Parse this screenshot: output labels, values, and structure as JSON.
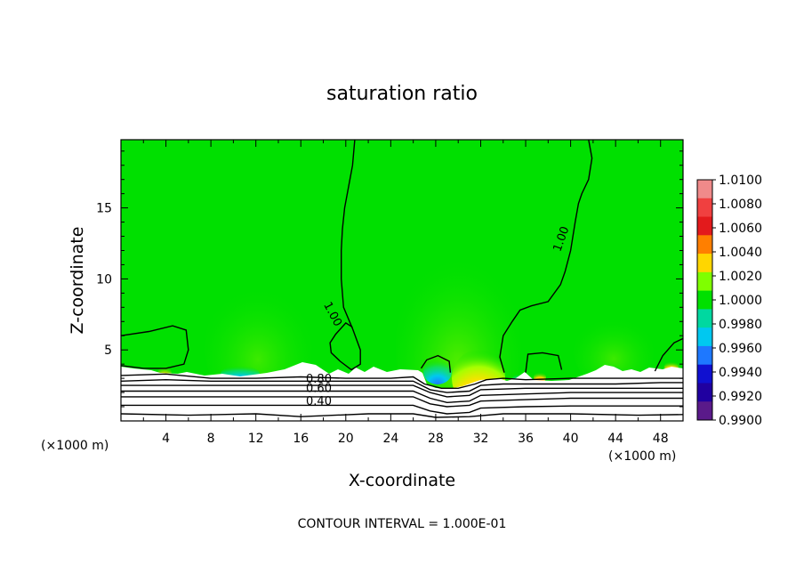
{
  "chart_data": {
    "type": "heatmap",
    "title": "saturation ratio",
    "xlabel": "X-coordinate",
    "ylabel": "Z-coordinate",
    "x_unit_left": "(×1000 m)",
    "x_unit_right": "(×1000 m)",
    "xlim": [
      0,
      50
    ],
    "ylim": [
      0,
      19.8
    ],
    "x_ticks": [
      4,
      8,
      12,
      16,
      20,
      24,
      28,
      32,
      36,
      40,
      44,
      48
    ],
    "y_ticks": [
      5,
      10,
      15
    ],
    "footer": "CONTOUR INTERVAL = 1.000E-01",
    "colorbar": {
      "min": 0.99,
      "max": 1.01,
      "levels": [
        "1.0100",
        "1.0080",
        "1.0060",
        "1.0040",
        "1.0020",
        "1.0000",
        "0.9980",
        "0.9960",
        "0.9940",
        "0.9920",
        "0.9900"
      ],
      "colors": [
        "#f08a8a",
        "#f04040",
        "#e31a1c",
        "#ff7f00",
        "#ffd600",
        "#7fff00",
        "#00e000",
        "#00d8a0",
        "#00c8f0",
        "#1e78ff",
        "#1010d0",
        "#2000a0",
        "#5a1a8a"
      ]
    },
    "background_value_color": "#00e000",
    "contour_labels": [
      {
        "text": "1.00",
        "x": 18.8,
        "z": 7.5,
        "angle": 62
      },
      {
        "text": "1.00",
        "x": 39.2,
        "z": 12.8,
        "angle": -70
      },
      {
        "text": "0.80",
        "x": 17.6,
        "z": 2.9,
        "angle": 0
      },
      {
        "text": "0.60",
        "x": 17.6,
        "z": 2.25,
        "angle": 0
      },
      {
        "text": "0.40",
        "x": 17.6,
        "z": 1.35,
        "angle": 0
      }
    ],
    "contour_lines": [
      {
        "level": 1.0,
        "points": [
          [
            20.8,
            19.8
          ],
          [
            20.6,
            18
          ],
          [
            19.9,
            15
          ],
          [
            19.7,
            13.5
          ],
          [
            19.6,
            12
          ],
          [
            19.6,
            10
          ],
          [
            19.8,
            8
          ],
          [
            20.6,
            6.5
          ],
          [
            21.3,
            5
          ],
          [
            21.3,
            4
          ],
          [
            20.5,
            3.6
          ],
          [
            19.5,
            4.2
          ],
          [
            18.7,
            4.8
          ],
          [
            18.6,
            5.5
          ],
          [
            19.1,
            6.1
          ],
          [
            20.0,
            6.9
          ],
          [
            20.6,
            6.6
          ]
        ]
      },
      {
        "level": 1.0,
        "points": [
          [
            41.6,
            19.8
          ],
          [
            41.9,
            18.5
          ],
          [
            41.6,
            17
          ],
          [
            41.0,
            16
          ],
          [
            40.7,
            15.3
          ],
          [
            40.4,
            14
          ],
          [
            40.0,
            12
          ],
          [
            39.5,
            10.5
          ],
          [
            39.1,
            9.6
          ],
          [
            38.0,
            8.4
          ],
          [
            36.5,
            8.1
          ],
          [
            35.5,
            7.8
          ],
          [
            34.8,
            7.0
          ],
          [
            34.0,
            6.0
          ],
          [
            33.7,
            4.5
          ],
          [
            34.1,
            3.4
          ]
        ]
      },
      {
        "level": 1.0,
        "points": [
          [
            0,
            6.0
          ],
          [
            2.5,
            6.3
          ],
          [
            4.6,
            6.7
          ],
          [
            5.8,
            6.4
          ],
          [
            6.0,
            5.0
          ],
          [
            5.6,
            4.0
          ],
          [
            4.0,
            3.7
          ],
          [
            2.0,
            3.7
          ],
          [
            0,
            3.9
          ]
        ]
      },
      {
        "level": 1.0,
        "points": [
          [
            26.7,
            3.7
          ],
          [
            27.2,
            4.3
          ],
          [
            28.2,
            4.6
          ],
          [
            29.2,
            4.2
          ],
          [
            29.3,
            3.4
          ]
        ]
      },
      {
        "level": 1.0,
        "points": [
          [
            36.0,
            3.4
          ],
          [
            36.2,
            4.7
          ],
          [
            37.5,
            4.8
          ],
          [
            38.9,
            4.6
          ],
          [
            39.2,
            3.6
          ]
        ]
      },
      {
        "level": 1.0,
        "points": [
          [
            47.5,
            3.5
          ],
          [
            48.2,
            4.6
          ],
          [
            49.2,
            5.5
          ],
          [
            50,
            5.8
          ]
        ]
      },
      {
        "level": 0.9,
        "points": [
          [
            0,
            3.2
          ],
          [
            4,
            3.3
          ],
          [
            8,
            3.0
          ],
          [
            12,
            3.0
          ],
          [
            16,
            3.1
          ],
          [
            20,
            3.0
          ],
          [
            24,
            3.0
          ],
          [
            26,
            3.1
          ],
          [
            27,
            2.6
          ],
          [
            28.5,
            2.3
          ],
          [
            30,
            2.3
          ],
          [
            31.5,
            2.6
          ],
          [
            32.5,
            2.9
          ],
          [
            34,
            3.0
          ],
          [
            36,
            2.9
          ],
          [
            40,
            3.0
          ],
          [
            44,
            3.0
          ],
          [
            48,
            3.0
          ],
          [
            50,
            3.0
          ]
        ]
      },
      {
        "level": 0.8,
        "points": [
          [
            0,
            2.8
          ],
          [
            4,
            2.9
          ],
          [
            8,
            2.8
          ],
          [
            12,
            2.8
          ],
          [
            16,
            2.8
          ],
          [
            20,
            2.8
          ],
          [
            24,
            2.8
          ],
          [
            26,
            2.8
          ],
          [
            27.5,
            2.2
          ],
          [
            29,
            2.0
          ],
          [
            31,
            2.1
          ],
          [
            32,
            2.5
          ],
          [
            34,
            2.6
          ],
          [
            36,
            2.6
          ],
          [
            40,
            2.6
          ],
          [
            44,
            2.6
          ],
          [
            48,
            2.7
          ],
          [
            50,
            2.7
          ]
        ]
      },
      {
        "level": 0.7,
        "points": [
          [
            0,
            2.5
          ],
          [
            4,
            2.5
          ],
          [
            8,
            2.5
          ],
          [
            12,
            2.5
          ],
          [
            16,
            2.5
          ],
          [
            20,
            2.5
          ],
          [
            24,
            2.5
          ],
          [
            26,
            2.5
          ],
          [
            27.5,
            2.0
          ],
          [
            29,
            1.7
          ],
          [
            31,
            1.8
          ],
          [
            32,
            2.2
          ],
          [
            36,
            2.3
          ],
          [
            40,
            2.3
          ],
          [
            44,
            2.3
          ],
          [
            48,
            2.3
          ],
          [
            50,
            2.3
          ]
        ]
      },
      {
        "level": 0.6,
        "points": [
          [
            0,
            2.1
          ],
          [
            4,
            2.1
          ],
          [
            8,
            2.1
          ],
          [
            12,
            2.1
          ],
          [
            16,
            2.1
          ],
          [
            20,
            2.1
          ],
          [
            24,
            2.1
          ],
          [
            26,
            2.1
          ],
          [
            27.5,
            1.6
          ],
          [
            29,
            1.3
          ],
          [
            31,
            1.4
          ],
          [
            32,
            1.8
          ],
          [
            36,
            1.9
          ],
          [
            40,
            2.0
          ],
          [
            44,
            2.0
          ],
          [
            48,
            2.0
          ],
          [
            50,
            2.0
          ]
        ]
      },
      {
        "level": 0.5,
        "points": [
          [
            0,
            1.7
          ],
          [
            4,
            1.7
          ],
          [
            8,
            1.7
          ],
          [
            12,
            1.7
          ],
          [
            16,
            1.7
          ],
          [
            20,
            1.7
          ],
          [
            24,
            1.7
          ],
          [
            26,
            1.7
          ],
          [
            27.5,
            1.2
          ],
          [
            29,
            1.0
          ],
          [
            31,
            1.1
          ],
          [
            32,
            1.4
          ],
          [
            36,
            1.5
          ],
          [
            40,
            1.6
          ],
          [
            44,
            1.6
          ],
          [
            48,
            1.6
          ],
          [
            50,
            1.6
          ]
        ]
      },
      {
        "level": 0.4,
        "points": [
          [
            0,
            1.1
          ],
          [
            4,
            1.1
          ],
          [
            8,
            1.1
          ],
          [
            12,
            1.1
          ],
          [
            16,
            1.1
          ],
          [
            20,
            1.1
          ],
          [
            24,
            1.1
          ],
          [
            26,
            1.1
          ],
          [
            27.5,
            0.7
          ],
          [
            29,
            0.5
          ],
          [
            31,
            0.6
          ],
          [
            32,
            0.9
          ],
          [
            36,
            1.0
          ],
          [
            40,
            1.05
          ],
          [
            44,
            1.05
          ],
          [
            48,
            1.05
          ],
          [
            50,
            1.05
          ]
        ]
      },
      {
        "level": 0.3,
        "points": [
          [
            0,
            0.5
          ],
          [
            6,
            0.4
          ],
          [
            12,
            0.5
          ],
          [
            16,
            0.3
          ],
          [
            22,
            0.5
          ],
          [
            26,
            0.5
          ],
          [
            28,
            0.25
          ],
          [
            31,
            0.3
          ],
          [
            34,
            0.5
          ],
          [
            40,
            0.5
          ],
          [
            46,
            0.4
          ],
          [
            50,
            0.45
          ]
        ]
      }
    ]
  }
}
